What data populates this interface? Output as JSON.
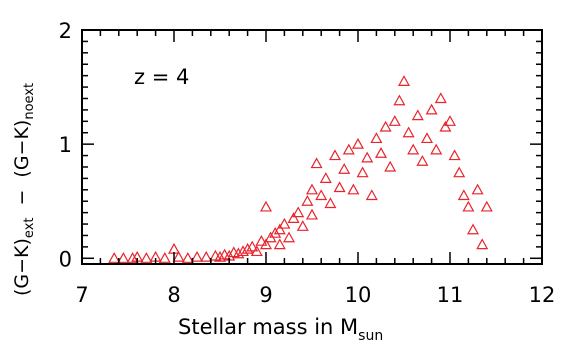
{
  "chart_data": {
    "type": "scatter",
    "title": "",
    "annotation": "z = 4",
    "xlabel": {
      "main": "Stellar mass in M",
      "sub": "sun"
    },
    "ylabel": {
      "part1": "(G−K)",
      "part1_sub": "ext",
      "dash": "−",
      "part2": "(G−K)",
      "part2_sub": "noext"
    },
    "xlim": [
      7,
      12
    ],
    "ylim": [
      -0.05,
      2
    ],
    "x_ticks": [
      7,
      8,
      9,
      10,
      11,
      12
    ],
    "y_ticks": [
      0,
      1,
      2
    ],
    "x_tick_labels": [
      "7",
      "8",
      "9",
      "10",
      "11",
      "12"
    ],
    "y_tick_labels": [
      "0",
      "1",
      "2"
    ],
    "colors": {
      "marker": "#e8242c",
      "axis": "#000000",
      "background": "#ffffff"
    },
    "marker": "triangle-open",
    "series": [
      {
        "points": [
          [
            7.35,
            0.0
          ],
          [
            7.45,
            0.0
          ],
          [
            7.55,
            0.0
          ],
          [
            7.6,
            0.01
          ],
          [
            7.7,
            0.0
          ],
          [
            7.8,
            0.01
          ],
          [
            7.9,
            0.0
          ],
          [
            8.0,
            0.08
          ],
          [
            8.05,
            0.01
          ],
          [
            8.15,
            0.0
          ],
          [
            8.25,
            0.01
          ],
          [
            8.35,
            0.01
          ],
          [
            8.45,
            0.02
          ],
          [
            8.5,
            0.01
          ],
          [
            8.55,
            0.03
          ],
          [
            8.6,
            0.02
          ],
          [
            8.65,
            0.05
          ],
          [
            8.7,
            0.04
          ],
          [
            8.75,
            0.06
          ],
          [
            8.8,
            0.08
          ],
          [
            8.85,
            0.1
          ],
          [
            8.9,
            0.06
          ],
          [
            8.95,
            0.15
          ],
          [
            9.0,
            0.45
          ],
          [
            9.0,
            0.12
          ],
          [
            9.05,
            0.18
          ],
          [
            9.1,
            0.22
          ],
          [
            9.15,
            0.25
          ],
          [
            9.15,
            0.12
          ],
          [
            9.2,
            0.3
          ],
          [
            9.25,
            0.18
          ],
          [
            9.3,
            0.35
          ],
          [
            9.35,
            0.4
          ],
          [
            9.4,
            0.28
          ],
          [
            9.45,
            0.5
          ],
          [
            9.5,
            0.38
          ],
          [
            9.5,
            0.6
          ],
          [
            9.55,
            0.83
          ],
          [
            9.6,
            0.55
          ],
          [
            9.65,
            0.7
          ],
          [
            9.7,
            0.48
          ],
          [
            9.75,
            0.9
          ],
          [
            9.8,
            0.62
          ],
          [
            9.85,
            0.78
          ],
          [
            9.9,
            0.95
          ],
          [
            9.95,
            0.6
          ],
          [
            10.0,
            1.0
          ],
          [
            10.05,
            0.75
          ],
          [
            10.1,
            0.88
          ],
          [
            10.15,
            0.55
          ],
          [
            10.2,
            1.05
          ],
          [
            10.25,
            0.92
          ],
          [
            10.3,
            1.15
          ],
          [
            10.35,
            0.8
          ],
          [
            10.4,
            1.2
          ],
          [
            10.45,
            1.38
          ],
          [
            10.5,
            1.55
          ],
          [
            10.55,
            1.1
          ],
          [
            10.6,
            0.95
          ],
          [
            10.65,
            1.25
          ],
          [
            10.7,
            0.85
          ],
          [
            10.75,
            1.05
          ],
          [
            10.8,
            1.3
          ],
          [
            10.85,
            0.95
          ],
          [
            10.9,
            1.4
          ],
          [
            10.95,
            1.15
          ],
          [
            11.0,
            1.2
          ],
          [
            11.05,
            0.9
          ],
          [
            11.1,
            0.75
          ],
          [
            11.15,
            0.55
          ],
          [
            11.2,
            0.45
          ],
          [
            11.25,
            0.25
          ],
          [
            11.3,
            0.6
          ],
          [
            11.35,
            0.12
          ],
          [
            11.4,
            0.45
          ]
        ]
      }
    ]
  }
}
